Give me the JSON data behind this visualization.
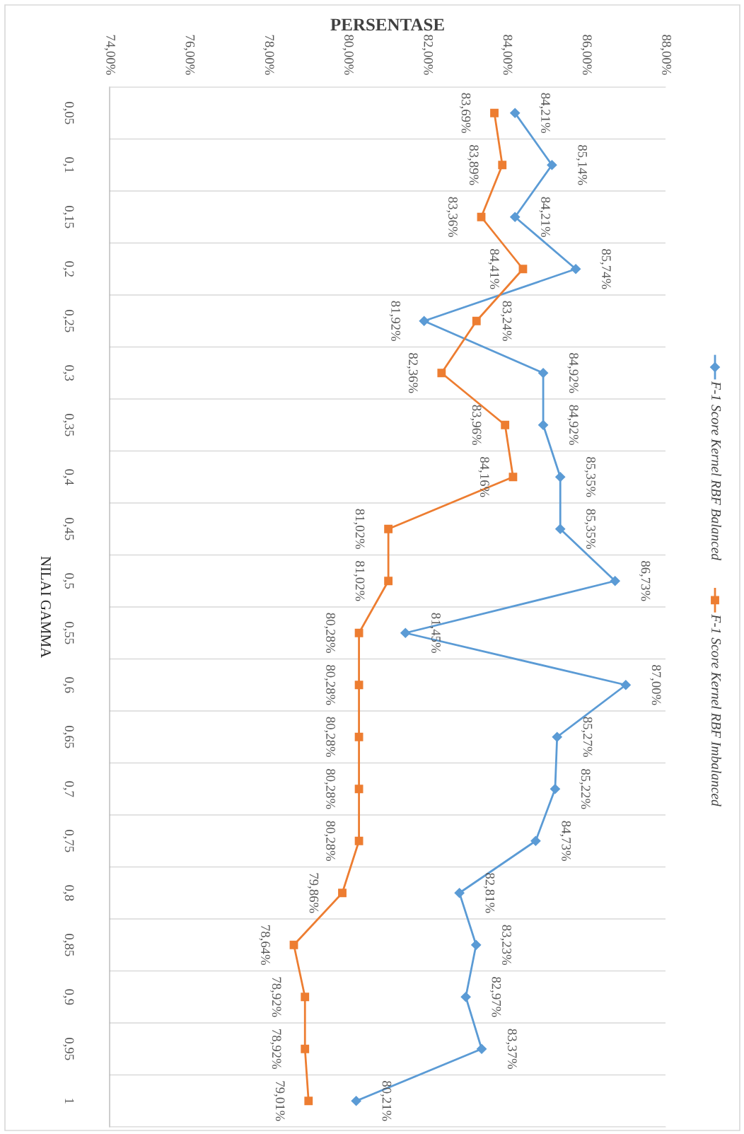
{
  "chart_data": {
    "type": "line",
    "orientation": "horizontal",
    "xlabel": "PERSENTASE",
    "ylabel": "NILAI GAMMA",
    "categories": [
      "0,05",
      "0,1",
      "0,15",
      "0,2",
      "0,25",
      "0,3",
      "0,35",
      "0,4",
      "0,45",
      "0,5",
      "0,55",
      "0,6",
      "0,65",
      "0,7",
      "0,75",
      "0,8",
      "0,85",
      "0,9",
      "0,95",
      "1"
    ],
    "series": [
      {
        "name": "F-1 Score Kernel RBF Balanced",
        "color": "#5b9bd5",
        "marker": "diamond",
        "values": [
          84.21,
          85.14,
          84.21,
          85.74,
          81.92,
          84.92,
          84.92,
          85.35,
          85.35,
          86.73,
          81.45,
          87.0,
          85.27,
          85.22,
          84.73,
          82.81,
          83.23,
          82.97,
          83.37,
          80.21
        ],
        "value_labels": [
          "84,21%",
          "85,14%",
          "84,21%",
          "85,74%",
          "81,92%",
          "84,92%",
          "84,92%",
          "85,35%",
          "85,35%",
          "86,73%",
          "81,45%",
          "87,00%",
          "85,27%",
          "85,22%",
          "84,73%",
          "82,81%",
          "83,23%",
          "82,97%",
          "83,37%",
          "80,21%"
        ]
      },
      {
        "name": "F-1 Score Kernel RBF Imbalanced",
        "color": "#ed7d31",
        "marker": "square",
        "values": [
          83.69,
          83.89,
          83.36,
          84.41,
          83.24,
          82.36,
          83.96,
          84.16,
          81.02,
          81.02,
          80.28,
          80.28,
          80.28,
          80.28,
          80.28,
          79.86,
          78.64,
          78.92,
          78.92,
          79.01
        ],
        "value_labels": [
          "83,69%",
          "83,89%",
          "83,36%",
          "84,41%",
          "83,24%",
          "82,36%",
          "83,96%",
          "84,16%",
          "81,02%",
          "81,02%",
          "80,28%",
          "80,28%",
          "80,28%",
          "80,28%",
          "80,28%",
          "79,86%",
          "78,64%",
          "78,92%",
          "78,92%",
          "79,01%"
        ]
      }
    ],
    "xlim": [
      74,
      88
    ],
    "xticks": [
      {
        "value": 74,
        "label": "74,00%"
      },
      {
        "value": 76,
        "label": "76,00%"
      },
      {
        "value": 78,
        "label": "78,00%"
      },
      {
        "value": 80,
        "label": "80,00%"
      },
      {
        "value": 82,
        "label": "82,00%"
      },
      {
        "value": 84,
        "label": "84,00%"
      },
      {
        "value": 86,
        "label": "86,00%"
      },
      {
        "value": 88,
        "label": "88,00%"
      }
    ],
    "grid": "y",
    "legend": "right",
    "line_style": "solid"
  }
}
